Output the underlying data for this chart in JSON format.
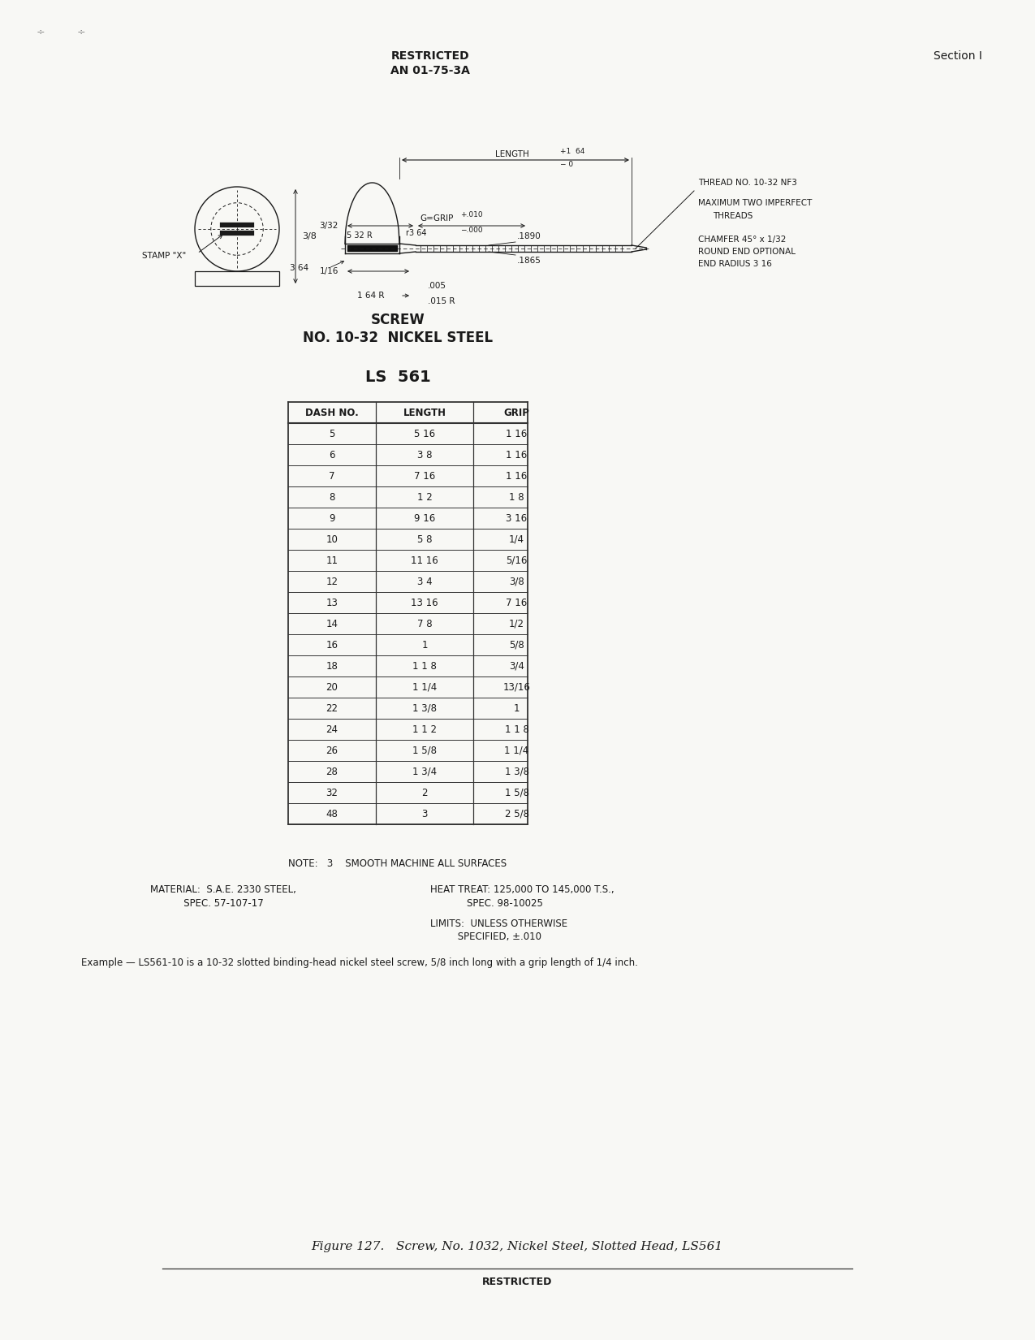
{
  "page_title_center": "RESTRICTED\nAN 01-75-3A",
  "page_title_right": "Section I",
  "screw_title": "SCREW\nNO. 10-32  NICKEL STEEL",
  "part_number": "LS  561",
  "table_headers": [
    "DASH NO.",
    "LENGTH",
    "GRIP"
  ],
  "table_data": [
    [
      "5",
      "5 16",
      "1 16"
    ],
    [
      "6",
      "3 8",
      "1 16"
    ],
    [
      "7",
      "7 16",
      "1 16"
    ],
    [
      "8",
      "1 2",
      "1 8"
    ],
    [
      "9",
      "9 16",
      "3 16"
    ],
    [
      "10",
      "5 8",
      "1/4"
    ],
    [
      "11",
      "11 16",
      "5/16"
    ],
    [
      "12",
      "3 4",
      "3/8"
    ],
    [
      "13",
      "13 16",
      "7 16"
    ],
    [
      "14",
      "7 8",
      "1/2"
    ],
    [
      "16",
      "1",
      "5/8"
    ],
    [
      "18",
      "1 1 8",
      "3/4"
    ],
    [
      "20",
      "1 1/4",
      "13/16"
    ],
    [
      "22",
      "1 3/8",
      "1"
    ],
    [
      "24",
      "1 1 2",
      "1 1 8"
    ],
    [
      "26",
      "1 5/8",
      "1 1/4"
    ],
    [
      "28",
      "1 3/4",
      "1 3/8"
    ],
    [
      "32",
      "2",
      "1 5/8"
    ],
    [
      "48",
      "3",
      "2 5/8"
    ]
  ],
  "note_text": "NOTE:   3    SMOOTH MACHINE ALL SURFACES",
  "material_left1": "MATERIAL:  S.A.E. 2330 STEEL,",
  "material_left2": "           SPEC. 57-107-17",
  "material_right1": "HEAT TREAT: 125,000 TO 145,000 T.S.,",
  "material_right2": "            SPEC. 98-10025",
  "material_right3": "LIMITS:  UNLESS OTHERWISE",
  "material_right4": "         SPECIFIED, ±.010",
  "example_text": "Example — LS561-10 is a 10-32 slotted binding-head nickel steel screw, 5/8 inch long with a grip length of 1/4 inch.",
  "figure_caption": "Figure 127.   Screw, No. 1032, Nickel Steel, Slotted Head, LS561",
  "bg_color": "#f8f8f5",
  "text_color": "#1a1a1a",
  "line_color": "#1a1a1a",
  "table_line_color": "#333333"
}
